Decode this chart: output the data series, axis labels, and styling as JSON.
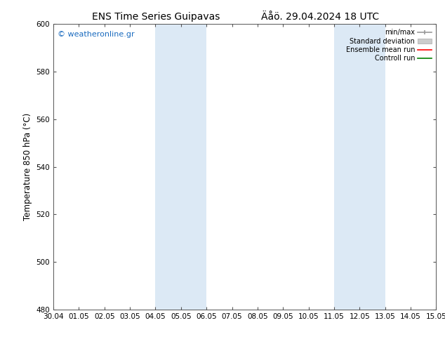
{
  "title_left": "ENS Time Series Guipavas",
  "title_right": "Äåö. 29.04.2024 18 UTC",
  "ylabel": "Temperature 850 hPa (°C)",
  "xlabel_ticks": [
    "30.04",
    "01.05",
    "02.05",
    "03.05",
    "04.05",
    "05.05",
    "06.05",
    "07.05",
    "08.05",
    "09.05",
    "10.05",
    "11.05",
    "12.05",
    "13.05",
    "14.05",
    "15.05"
  ],
  "ylim": [
    480,
    600
  ],
  "yticks": [
    480,
    500,
    520,
    540,
    560,
    580,
    600
  ],
  "background_color": "#ffffff",
  "plot_bg_color": "#ffffff",
  "shaded_bands": [
    {
      "xstart": 4.0,
      "xend": 6.0,
      "color": "#dce9f5"
    },
    {
      "xstart": 11.0,
      "xend": 13.0,
      "color": "#dce9f5"
    }
  ],
  "watermark_text": "© weatheronline.gr",
  "watermark_color": "#1a6bbf",
  "title_fontsize": 10,
  "tick_fontsize": 7.5,
  "label_fontsize": 8.5,
  "watermark_fontsize": 8,
  "legend_fontsize": 7
}
